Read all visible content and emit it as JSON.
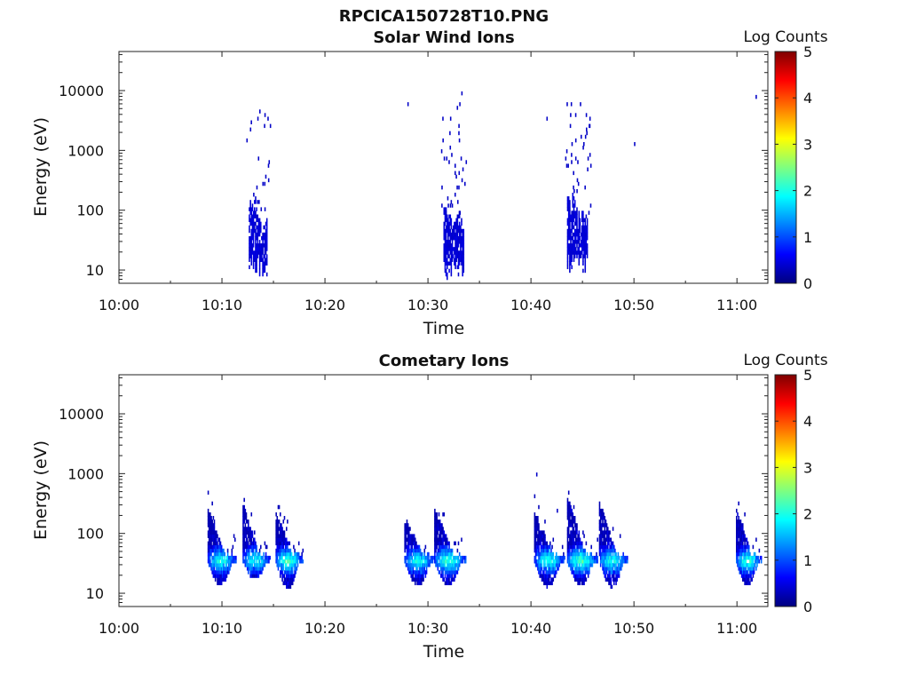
{
  "figure": {
    "title": "RPCICA150728T10.PNG"
  },
  "colors": {
    "colormap": [
      "#00007f",
      "#0000ff",
      "#007fff",
      "#00ffff",
      "#7fff7f",
      "#ffff00",
      "#ff7f00",
      "#ff0000",
      "#7f0000"
    ],
    "axis": "#222222",
    "background": "#ffffff"
  },
  "chart_data": [
    {
      "type": "heatmap",
      "title": "Solar Wind Ions",
      "xlabel": "Time",
      "ylabel": "Energy (eV)",
      "colorbar_label": "Log Counts",
      "x_ticks": [
        "10:00",
        "10:10",
        "10:20",
        "10:30",
        "10:40",
        "10:50",
        "11:00"
      ],
      "x_tick_minutes": [
        0,
        10,
        20,
        30,
        40,
        50,
        60
      ],
      "xlim_minutes": [
        0,
        63
      ],
      "y_scale": "log",
      "y_ticks": [
        "10",
        "100",
        "1000",
        "10000"
      ],
      "y_tick_values": [
        10,
        100,
        1000,
        10000
      ],
      "ylim": [
        6,
        45000
      ],
      "colorbar_ticks": [
        "0",
        "1",
        "2",
        "3",
        "4",
        "5"
      ],
      "clim": [
        0,
        5
      ],
      "bursts": [
        {
          "center_minute": 13.5,
          "peak_eV": 35,
          "spread_min": 0.9,
          "level": 0.35,
          "scatter_count": 22,
          "scatter_eV_max": 6000
        },
        {
          "center_minute": 32.5,
          "peak_eV": 30,
          "spread_min": 1.0,
          "level": 0.35,
          "scatter_count": 40,
          "scatter_eV_max": 9000
        },
        {
          "center_minute": 44.5,
          "peak_eV": 35,
          "spread_min": 1.0,
          "level": 0.35,
          "scatter_count": 40,
          "scatter_eV_max": 7000
        }
      ],
      "isolated_points": [
        {
          "minute": 28.0,
          "eV": 6000
        },
        {
          "minute": 41.5,
          "eV": 3200
        },
        {
          "minute": 50.0,
          "eV": 1300
        },
        {
          "minute": 61.8,
          "eV": 7800
        }
      ]
    },
    {
      "type": "heatmap",
      "title": "Cometary Ions",
      "xlabel": "Time",
      "ylabel": "Energy (eV)",
      "colorbar_label": "Log Counts",
      "x_ticks": [
        "10:00",
        "10:10",
        "10:20",
        "10:30",
        "10:40",
        "10:50",
        "11:00"
      ],
      "x_tick_minutes": [
        0,
        10,
        20,
        30,
        40,
        50,
        60
      ],
      "xlim_minutes": [
        0,
        63
      ],
      "y_scale": "log",
      "y_ticks": [
        "10",
        "100",
        "1000",
        "10000"
      ],
      "y_tick_values": [
        10,
        100,
        1000,
        10000
      ],
      "ylim": [
        6,
        45000
      ],
      "colorbar_ticks": [
        "0",
        "1",
        "2",
        "3",
        "4",
        "5"
      ],
      "clim": [
        0,
        5
      ],
      "arcs": [
        {
          "start_minute": 8.6,
          "end_minute": 11.3,
          "top_eV": 250,
          "bottom_eV": 14,
          "peak_level": 2.1
        },
        {
          "start_minute": 12.0,
          "end_minute": 14.6,
          "top_eV": 320,
          "bottom_eV": 18,
          "peak_level": 2.0
        },
        {
          "start_minute": 15.2,
          "end_minute": 17.8,
          "top_eV": 230,
          "bottom_eV": 12,
          "peak_level": 2.3
        },
        {
          "start_minute": 27.7,
          "end_minute": 30.6,
          "top_eV": 180,
          "bottom_eV": 14,
          "peak_level": 2.0
        },
        {
          "start_minute": 30.6,
          "end_minute": 33.6,
          "top_eV": 260,
          "bottom_eV": 14,
          "peak_level": 2.2
        },
        {
          "start_minute": 40.3,
          "end_minute": 43.2,
          "top_eV": 220,
          "bottom_eV": 13,
          "peak_level": 2.1
        },
        {
          "start_minute": 43.5,
          "end_minute": 46.4,
          "top_eV": 420,
          "bottom_eV": 14,
          "peak_level": 2.3
        },
        {
          "start_minute": 46.6,
          "end_minute": 49.3,
          "top_eV": 350,
          "bottom_eV": 13,
          "peak_level": 2.1
        },
        {
          "start_minute": 59.9,
          "end_minute": 62.3,
          "top_eV": 260,
          "bottom_eV": 14,
          "peak_level": 2.2
        }
      ],
      "isolated_points": [
        {
          "minute": 40.5,
          "eV": 1000
        },
        {
          "minute": 42.5,
          "eV": 250
        }
      ]
    }
  ]
}
